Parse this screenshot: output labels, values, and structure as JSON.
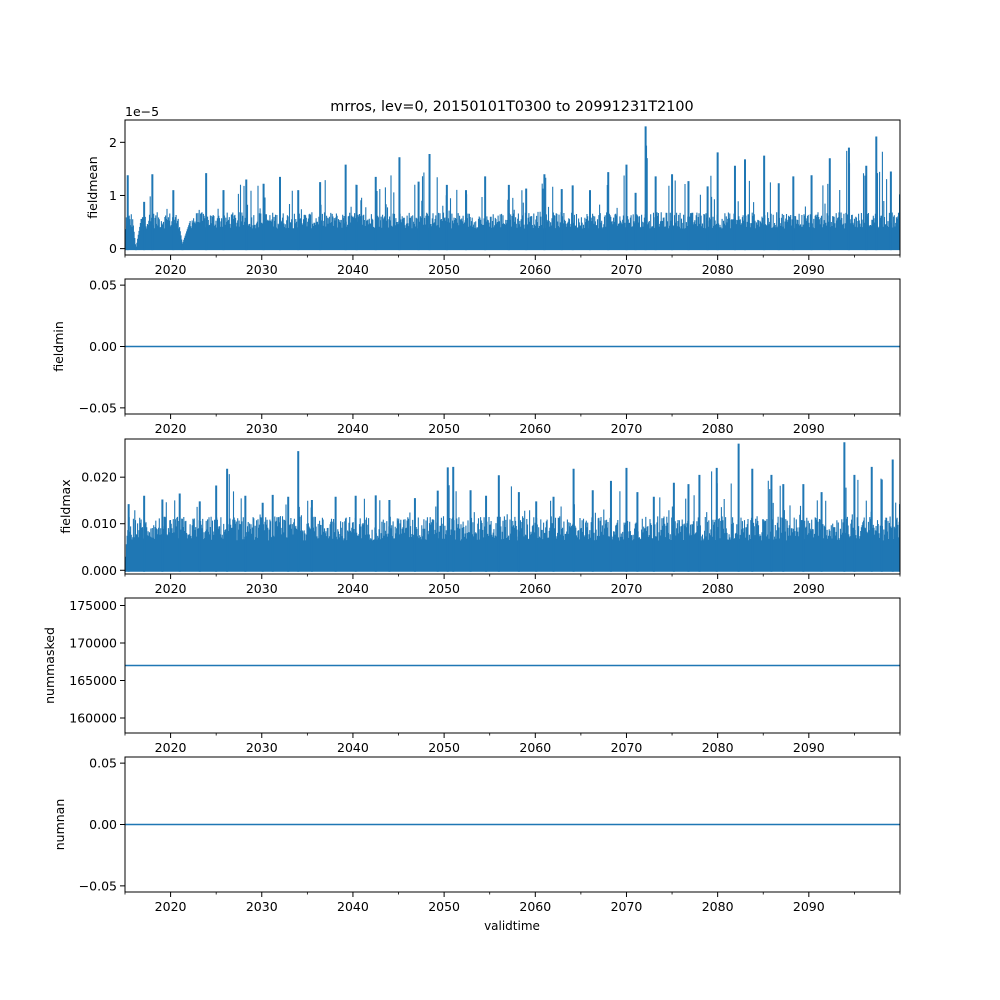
{
  "figure": {
    "title": "mrros, lev=0, 20150101T0300 to 20991231T2100",
    "xlabel": "validtime"
  },
  "colors": {
    "series": "#1f77b4",
    "axes": "#000000",
    "background": "#ffffff"
  },
  "chart_data": [
    {
      "type": "line",
      "ylabel": "fieldmean",
      "offset_label": "1e−5",
      "xlim": [
        2015.0,
        2100.0
      ],
      "ylim": [
        -1.2e-06,
        2.42e-05
      ],
      "xticks": [
        2020,
        2030,
        2040,
        2050,
        2060,
        2070,
        2080,
        2090
      ],
      "xtick_labels": [
        "2020",
        "2030",
        "2040",
        "2050",
        "2060",
        "2070",
        "2080",
        "2090"
      ],
      "yticks": [
        0,
        1e-05,
        2e-05
      ],
      "ytick_labels": [
        "0",
        "1",
        "2"
      ],
      "series": [
        {
          "x": [
            2015.0,
            2015.3,
            2016.2,
            2017.1,
            2018.0,
            2020.3,
            2021.3,
            2023.9,
            2025.8,
            2028.3,
            2030.2,
            2032.0,
            2034.0,
            2036.4,
            2039.2,
            2040.4,
            2042.5,
            2045.1,
            2047.2,
            2048.4,
            2050.3,
            2052.4,
            2054.5,
            2057.1,
            2059.0,
            2061.0,
            2062.9,
            2064.1,
            2066.0,
            2068.0,
            2070.0,
            2071.0,
            2072.1,
            2073.2,
            2075.0,
            2076.8,
            2078.9,
            2080.0,
            2081.9,
            2083.0,
            2085.1,
            2086.7,
            2088.3,
            2090.3,
            2092.3,
            2094.4,
            2096.3,
            2097.4,
            2099.0,
            2100.0
          ],
          "y": [
            2e-07,
            1.38e-05,
            1e-07,
            8.8e-06,
            1.4e-05,
            1.1e-05,
            9e-07,
            1.42e-05,
            1.1e-05,
            1.3e-05,
            1.22e-05,
            1.35e-05,
            1.1e-05,
            1.25e-05,
            1.58e-05,
            1.2e-05,
            1.35e-05,
            1.72e-05,
            1.26e-05,
            1.78e-05,
            1.2e-05,
            1.1e-05,
            1.36e-05,
            1.2e-05,
            1.13e-05,
            1.4e-05,
            1.12e-05,
            1.19e-05,
            1.1e-05,
            1.44e-05,
            1.58e-05,
            1.05e-05,
            2.3e-05,
            1.36e-05,
            1.4e-05,
            1.27e-05,
            1.17e-05,
            1.81e-05,
            1.56e-05,
            1.68e-05,
            1.75e-05,
            1.23e-05,
            1.36e-05,
            1.38e-05,
            1.7e-05,
            1.9e-05,
            1.56e-05,
            2.11e-05,
            1.45e-05,
            1.02e-05
          ]
        }
      ]
    },
    {
      "type": "line",
      "ylabel": "fieldmin",
      "xlim": [
        2015.0,
        2100.0
      ],
      "ylim": [
        -0.055,
        0.055
      ],
      "xticks": [
        2020,
        2030,
        2040,
        2050,
        2060,
        2070,
        2080,
        2090
      ],
      "xtick_labels": [
        "2020",
        "2030",
        "2040",
        "2050",
        "2060",
        "2070",
        "2080",
        "2090"
      ],
      "yticks": [
        -0.05,
        0.0,
        0.05
      ],
      "ytick_labels": [
        "−0.05",
        "0.00",
        "0.05"
      ],
      "series": [
        {
          "x": [
            2015.0,
            2100.0
          ],
          "y": [
            0.0,
            0.0
          ]
        }
      ]
    },
    {
      "type": "line",
      "ylabel": "fieldmax",
      "xlim": [
        2015.0,
        2100.0
      ],
      "ylim": [
        -0.0008,
        0.0282
      ],
      "xticks": [
        2020,
        2030,
        2040,
        2050,
        2060,
        2070,
        2080,
        2090
      ],
      "xtick_labels": [
        "2020",
        "2030",
        "2040",
        "2050",
        "2060",
        "2070",
        "2080",
        "2090"
      ],
      "yticks": [
        0.0,
        0.01,
        0.02
      ],
      "ytick_labels": [
        "0.000",
        "0.010",
        "0.020"
      ],
      "series": [
        {
          "x": [
            2015.0,
            2015.4,
            2017.1,
            2019.1,
            2021.0,
            2023.2,
            2025.0,
            2026.2,
            2028.2,
            2030.1,
            2031.2,
            2032.9,
            2034.0,
            2035.5,
            2038.1,
            2040.3,
            2042.5,
            2044.0,
            2046.8,
            2049.3,
            2050.4,
            2051.0,
            2052.9,
            2054.6,
            2056.0,
            2058.2,
            2060.1,
            2062.0,
            2064.2,
            2066.3,
            2068.3,
            2070.0,
            2071.2,
            2073.0,
            2075.2,
            2076.8,
            2078.0,
            2079.9,
            2082.3,
            2083.8,
            2085.9,
            2087.2,
            2089.4,
            2091.4,
            2093.9,
            2095.0,
            2096.9,
            2098.0,
            2099.2,
            2100.0
          ],
          "y": [
            0.0002,
            0.0142,
            0.016,
            0.0152,
            0.0165,
            0.0148,
            0.0182,
            0.0218,
            0.016,
            0.0145,
            0.0162,
            0.0158,
            0.0256,
            0.0151,
            0.0158,
            0.016,
            0.0161,
            0.0151,
            0.0155,
            0.0171,
            0.0221,
            0.0222,
            0.0172,
            0.016,
            0.0204,
            0.0168,
            0.0148,
            0.0158,
            0.0218,
            0.0172,
            0.0192,
            0.022,
            0.0168,
            0.0158,
            0.0188,
            0.0185,
            0.0205,
            0.022,
            0.0272,
            0.0218,
            0.0205,
            0.0185,
            0.0185,
            0.0168,
            0.0275,
            0.0205,
            0.0222,
            0.0195,
            0.0238,
            0.0142
          ]
        }
      ]
    },
    {
      "type": "line",
      "ylabel": "nummasked",
      "xlim": [
        2015.0,
        2100.0
      ],
      "ylim": [
        158000,
        176000
      ],
      "xticks": [
        2020,
        2030,
        2040,
        2050,
        2060,
        2070,
        2080,
        2090
      ],
      "xtick_labels": [
        "2020",
        "2030",
        "2040",
        "2050",
        "2060",
        "2070",
        "2080",
        "2090"
      ],
      "yticks": [
        160000,
        165000,
        170000,
        175000
      ],
      "ytick_labels": [
        "160000",
        "165000",
        "170000",
        "175000"
      ],
      "series": [
        {
          "x": [
            2015.0,
            2100.0
          ],
          "y": [
            167000,
            167000
          ]
        }
      ]
    },
    {
      "type": "line",
      "ylabel": "numnan",
      "xlim": [
        2015.0,
        2100.0
      ],
      "ylim": [
        -0.055,
        0.055
      ],
      "xticks": [
        2020,
        2030,
        2040,
        2050,
        2060,
        2070,
        2080,
        2090
      ],
      "xtick_labels": [
        "2020",
        "2030",
        "2040",
        "2050",
        "2060",
        "2070",
        "2080",
        "2090"
      ],
      "yticks": [
        -0.05,
        0.0,
        0.05
      ],
      "ytick_labels": [
        "−0.05",
        "0.00",
        "0.05"
      ],
      "series": [
        {
          "x": [
            2015.0,
            2100.0
          ],
          "y": [
            0.0,
            0.0
          ]
        }
      ]
    }
  ]
}
